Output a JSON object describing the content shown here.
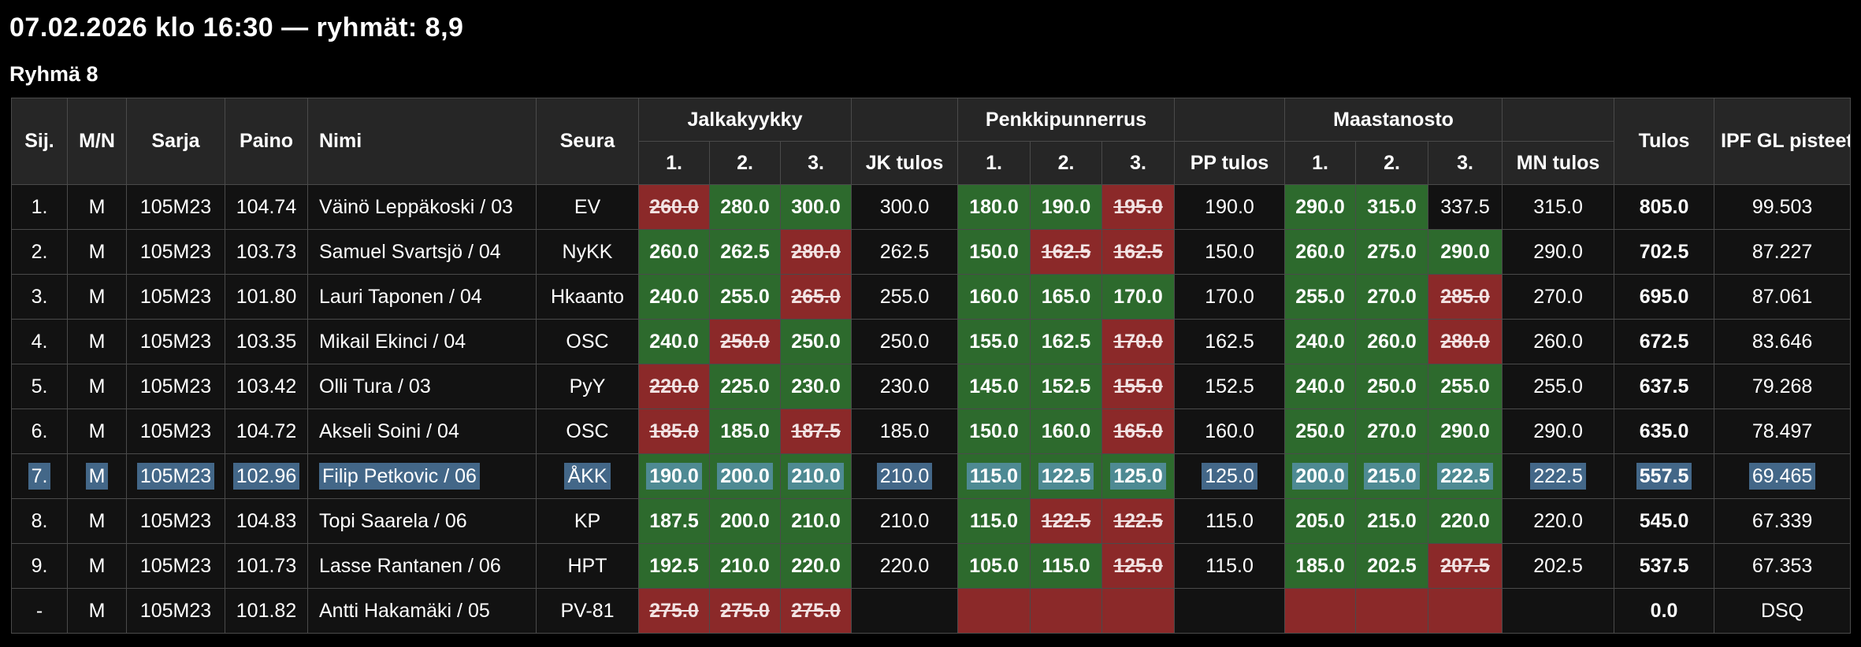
{
  "page": {
    "title": "07.02.2026 klo 16:30 — ryhmät: 8,9",
    "group_heading": "Ryhmä 8"
  },
  "colors": {
    "good_lift": "#2d6a2d",
    "failed_lift": "#8b2929",
    "header_bg": "#262626",
    "cell_bg": "#121212",
    "selection_highlight": "#64a0d7"
  },
  "table": {
    "headers": {
      "sij": "Sij.",
      "mn": "M/N",
      "sarja": "Sarja",
      "paino": "Paino",
      "nimi": "Nimi",
      "seura": "Seura",
      "squat_group": "Jalkakyykky",
      "bench_group": "Penkkipunnerrus",
      "deadlift_group": "Maastanosto",
      "attempt1": "1.",
      "attempt2": "2.",
      "attempt3": "3.",
      "jk_tulos": "JK tulos",
      "pp_tulos": "PP tulos",
      "mn_tulos": "MN tulos",
      "tulos": "Tulos",
      "ipf": "IPF GL pisteet"
    },
    "rows": [
      {
        "sij": "1.",
        "mn": "M",
        "sarja": "105M23",
        "paino": "104.74",
        "nimi": "Väinö Leppäkoski / 03",
        "seura": "EV",
        "jk": [
          {
            "v": "260.0",
            "s": "bad"
          },
          {
            "v": "280.0",
            "s": "good"
          },
          {
            "v": "300.0",
            "s": "good"
          }
        ],
        "jk_tulos": "300.0",
        "pp": [
          {
            "v": "180.0",
            "s": "good"
          },
          {
            "v": "190.0",
            "s": "good"
          },
          {
            "v": "195.0",
            "s": "bad"
          }
        ],
        "pp_tulos": "190.0",
        "mnl": [
          {
            "v": "290.0",
            "s": "good"
          },
          {
            "v": "315.0",
            "s": "good"
          },
          {
            "v": "337.5",
            "s": "none"
          }
        ],
        "mn_tulos": "315.0",
        "tulos": "805.0",
        "ipf": "99.503",
        "selected": false
      },
      {
        "sij": "2.",
        "mn": "M",
        "sarja": "105M23",
        "paino": "103.73",
        "nimi": "Samuel Svartsjö / 04",
        "seura": "NyKK",
        "jk": [
          {
            "v": "260.0",
            "s": "good"
          },
          {
            "v": "262.5",
            "s": "good"
          },
          {
            "v": "280.0",
            "s": "bad"
          }
        ],
        "jk_tulos": "262.5",
        "pp": [
          {
            "v": "150.0",
            "s": "good"
          },
          {
            "v": "162.5",
            "s": "bad"
          },
          {
            "v": "162.5",
            "s": "bad"
          }
        ],
        "pp_tulos": "150.0",
        "mnl": [
          {
            "v": "260.0",
            "s": "good"
          },
          {
            "v": "275.0",
            "s": "good"
          },
          {
            "v": "290.0",
            "s": "good"
          }
        ],
        "mn_tulos": "290.0",
        "tulos": "702.5",
        "ipf": "87.227",
        "selected": false
      },
      {
        "sij": "3.",
        "mn": "M",
        "sarja": "105M23",
        "paino": "101.80",
        "nimi": "Lauri Taponen / 04",
        "seura": "Hkaanto",
        "jk": [
          {
            "v": "240.0",
            "s": "good"
          },
          {
            "v": "255.0",
            "s": "good"
          },
          {
            "v": "265.0",
            "s": "bad"
          }
        ],
        "jk_tulos": "255.0",
        "pp": [
          {
            "v": "160.0",
            "s": "good"
          },
          {
            "v": "165.0",
            "s": "good"
          },
          {
            "v": "170.0",
            "s": "good"
          }
        ],
        "pp_tulos": "170.0",
        "mnl": [
          {
            "v": "255.0",
            "s": "good"
          },
          {
            "v": "270.0",
            "s": "good"
          },
          {
            "v": "285.0",
            "s": "bad"
          }
        ],
        "mn_tulos": "270.0",
        "tulos": "695.0",
        "ipf": "87.061",
        "selected": false
      },
      {
        "sij": "4.",
        "mn": "M",
        "sarja": "105M23",
        "paino": "103.35",
        "nimi": "Mikail Ekinci / 04",
        "seura": "OSC",
        "jk": [
          {
            "v": "240.0",
            "s": "good"
          },
          {
            "v": "250.0",
            "s": "bad"
          },
          {
            "v": "250.0",
            "s": "good"
          }
        ],
        "jk_tulos": "250.0",
        "pp": [
          {
            "v": "155.0",
            "s": "good"
          },
          {
            "v": "162.5",
            "s": "good"
          },
          {
            "v": "170.0",
            "s": "bad"
          }
        ],
        "pp_tulos": "162.5",
        "mnl": [
          {
            "v": "240.0",
            "s": "good"
          },
          {
            "v": "260.0",
            "s": "good"
          },
          {
            "v": "280.0",
            "s": "bad"
          }
        ],
        "mn_tulos": "260.0",
        "tulos": "672.5",
        "ipf": "83.646",
        "selected": false
      },
      {
        "sij": "5.",
        "mn": "M",
        "sarja": "105M23",
        "paino": "103.42",
        "nimi": "Olli Tura / 03",
        "seura": "PyY",
        "jk": [
          {
            "v": "220.0",
            "s": "bad"
          },
          {
            "v": "225.0",
            "s": "good"
          },
          {
            "v": "230.0",
            "s": "good"
          }
        ],
        "jk_tulos": "230.0",
        "pp": [
          {
            "v": "145.0",
            "s": "good"
          },
          {
            "v": "152.5",
            "s": "good"
          },
          {
            "v": "155.0",
            "s": "bad"
          }
        ],
        "pp_tulos": "152.5",
        "mnl": [
          {
            "v": "240.0",
            "s": "good"
          },
          {
            "v": "250.0",
            "s": "good"
          },
          {
            "v": "255.0",
            "s": "good"
          }
        ],
        "mn_tulos": "255.0",
        "tulos": "637.5",
        "ipf": "79.268",
        "selected": false
      },
      {
        "sij": "6.",
        "mn": "M",
        "sarja": "105M23",
        "paino": "104.72",
        "nimi": "Akseli Soini / 04",
        "seura": "OSC",
        "jk": [
          {
            "v": "185.0",
            "s": "bad"
          },
          {
            "v": "185.0",
            "s": "good"
          },
          {
            "v": "187.5",
            "s": "bad"
          }
        ],
        "jk_tulos": "185.0",
        "pp": [
          {
            "v": "150.0",
            "s": "good"
          },
          {
            "v": "160.0",
            "s": "good"
          },
          {
            "v": "165.0",
            "s": "bad"
          }
        ],
        "pp_tulos": "160.0",
        "mnl": [
          {
            "v": "250.0",
            "s": "good"
          },
          {
            "v": "270.0",
            "s": "good"
          },
          {
            "v": "290.0",
            "s": "good"
          }
        ],
        "mn_tulos": "290.0",
        "tulos": "635.0",
        "ipf": "78.497",
        "selected": false
      },
      {
        "sij": "7.",
        "mn": "M",
        "sarja": "105M23",
        "paino": "102.96",
        "nimi": "Filip Petkovic / 06",
        "seura": "ÅKK",
        "jk": [
          {
            "v": "190.0",
            "s": "good"
          },
          {
            "v": "200.0",
            "s": "good"
          },
          {
            "v": "210.0",
            "s": "good"
          }
        ],
        "jk_tulos": "210.0",
        "pp": [
          {
            "v": "115.0",
            "s": "good"
          },
          {
            "v": "122.5",
            "s": "good"
          },
          {
            "v": "125.0",
            "s": "good"
          }
        ],
        "pp_tulos": "125.0",
        "mnl": [
          {
            "v": "200.0",
            "s": "good"
          },
          {
            "v": "215.0",
            "s": "good"
          },
          {
            "v": "222.5",
            "s": "good"
          }
        ],
        "mn_tulos": "222.5",
        "tulos": "557.5",
        "ipf": "69.465",
        "selected": true
      },
      {
        "sij": "8.",
        "mn": "M",
        "sarja": "105M23",
        "paino": "104.83",
        "nimi": "Topi Saarela / 06",
        "seura": "KP",
        "jk": [
          {
            "v": "187.5",
            "s": "good"
          },
          {
            "v": "200.0",
            "s": "good"
          },
          {
            "v": "210.0",
            "s": "good"
          }
        ],
        "jk_tulos": "210.0",
        "pp": [
          {
            "v": "115.0",
            "s": "good"
          },
          {
            "v": "122.5",
            "s": "bad"
          },
          {
            "v": "122.5",
            "s": "bad"
          }
        ],
        "pp_tulos": "115.0",
        "mnl": [
          {
            "v": "205.0",
            "s": "good"
          },
          {
            "v": "215.0",
            "s": "good"
          },
          {
            "v": "220.0",
            "s": "good"
          }
        ],
        "mn_tulos": "220.0",
        "tulos": "545.0",
        "ipf": "67.339",
        "selected": false
      },
      {
        "sij": "9.",
        "mn": "M",
        "sarja": "105M23",
        "paino": "101.73",
        "nimi": "Lasse Rantanen / 06",
        "seura": "HPT",
        "jk": [
          {
            "v": "192.5",
            "s": "good"
          },
          {
            "v": "210.0",
            "s": "good"
          },
          {
            "v": "220.0",
            "s": "good"
          }
        ],
        "jk_tulos": "220.0",
        "pp": [
          {
            "v": "105.0",
            "s": "good"
          },
          {
            "v": "115.0",
            "s": "good"
          },
          {
            "v": "125.0",
            "s": "bad"
          }
        ],
        "pp_tulos": "115.0",
        "mnl": [
          {
            "v": "185.0",
            "s": "good"
          },
          {
            "v": "202.5",
            "s": "good"
          },
          {
            "v": "207.5",
            "s": "bad"
          }
        ],
        "mn_tulos": "202.5",
        "tulos": "537.5",
        "ipf": "67.353",
        "selected": false
      },
      {
        "sij": "-",
        "mn": "M",
        "sarja": "105M23",
        "paino": "101.82",
        "nimi": "Antti Hakamäki / 05",
        "seura": "PV-81",
        "jk": [
          {
            "v": "275.0",
            "s": "bad"
          },
          {
            "v": "275.0",
            "s": "bad"
          },
          {
            "v": "275.0",
            "s": "bad"
          }
        ],
        "jk_tulos": "",
        "pp": [
          {
            "v": "",
            "s": "bad"
          },
          {
            "v": "",
            "s": "bad"
          },
          {
            "v": "",
            "s": "bad"
          }
        ],
        "pp_tulos": "",
        "mnl": [
          {
            "v": "",
            "s": "bad"
          },
          {
            "v": "",
            "s": "bad"
          },
          {
            "v": "",
            "s": "bad"
          }
        ],
        "mn_tulos": "",
        "tulos": "0.0",
        "ipf": "DSQ",
        "selected": false
      }
    ]
  }
}
